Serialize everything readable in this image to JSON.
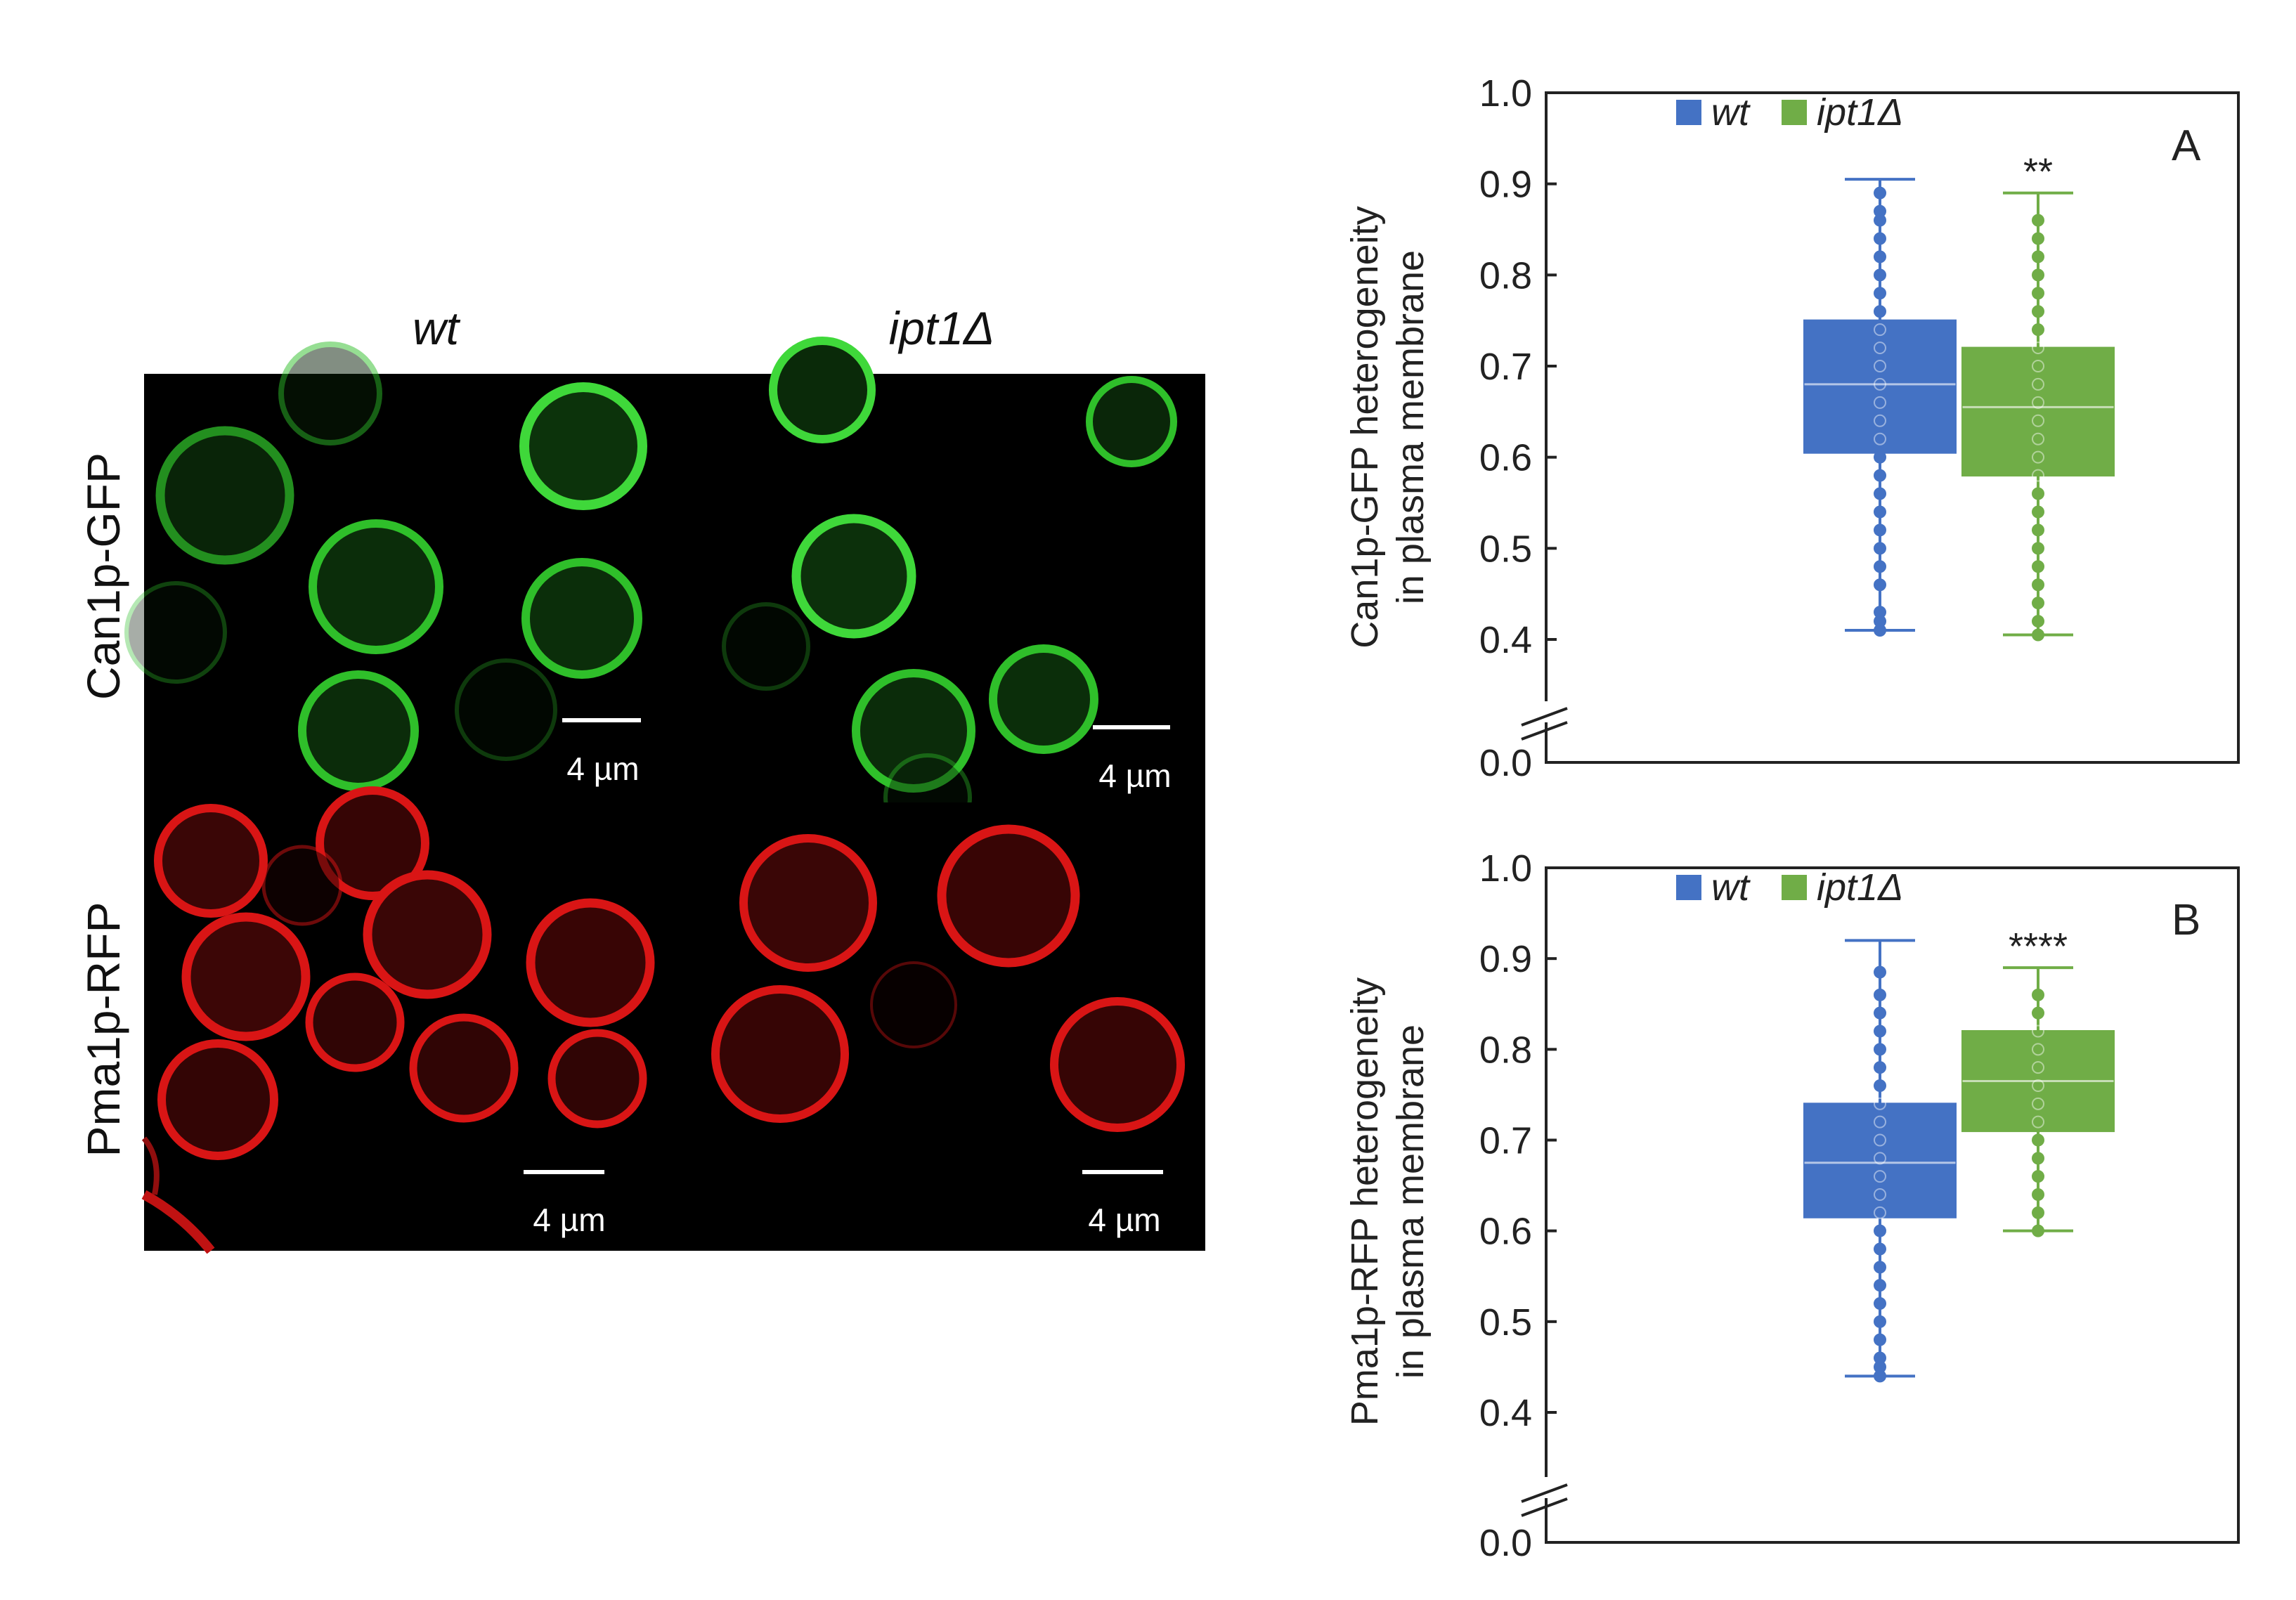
{
  "micrographs": {
    "columns": [
      "wt",
      "ipt1Δ"
    ],
    "rows": [
      "Can1p-GFP",
      "Pma1p-RFP"
    ],
    "scale_label": "4 µm",
    "colors": {
      "green_channel": "#35c830",
      "red_channel": "#e01818"
    }
  },
  "chart_data": [
    {
      "type": "box",
      "panel_label": "A",
      "ylabel_lines": [
        "Can1p-GFP heterogeneity",
        "in plasma membrane"
      ],
      "ylim": [
        0.0,
        1.0
      ],
      "axis_break": true,
      "y_ticks": [
        "0.0",
        "0.4",
        "0.5",
        "0.6",
        "0.7",
        "0.8",
        "0.9",
        "1.0"
      ],
      "legend": [
        "wt",
        "ipt1Δ"
      ],
      "legend_placement": "top-center",
      "series": [
        {
          "name": "wt",
          "color": "#4472c4",
          "min": 0.41,
          "q1": 0.605,
          "median": 0.68,
          "q3": 0.75,
          "max": 0.905,
          "points": [
            0.41,
            0.42,
            0.43,
            0.46,
            0.48,
            0.5,
            0.52,
            0.54,
            0.56,
            0.58,
            0.6,
            0.62,
            0.64,
            0.66,
            0.68,
            0.7,
            0.72,
            0.74,
            0.76,
            0.78,
            0.8,
            0.82,
            0.84,
            0.86,
            0.87,
            0.89
          ]
        },
        {
          "name": "ipt1Δ",
          "color": "#70ad47",
          "min": 0.405,
          "q1": 0.58,
          "median": 0.655,
          "q3": 0.72,
          "max": 0.89,
          "points": [
            0.405,
            0.42,
            0.44,
            0.46,
            0.48,
            0.5,
            0.52,
            0.54,
            0.56,
            0.58,
            0.6,
            0.62,
            0.64,
            0.66,
            0.68,
            0.7,
            0.72,
            0.74,
            0.76,
            0.78,
            0.8,
            0.82,
            0.84,
            0.86
          ]
        }
      ],
      "significance": "**"
    },
    {
      "type": "box",
      "panel_label": "B",
      "ylabel_lines": [
        "Pma1p-RFP heterogeneity",
        "in plasma membrane"
      ],
      "ylim": [
        0.0,
        1.0
      ],
      "axis_break": true,
      "y_ticks": [
        "0.0",
        "0.4",
        "0.5",
        "0.6",
        "0.7",
        "0.8",
        "0.9",
        "1.0"
      ],
      "legend": [
        "wt",
        "ipt1Δ"
      ],
      "legend_placement": "top-center",
      "series": [
        {
          "name": "wt",
          "color": "#4472c4",
          "min": 0.44,
          "q1": 0.615,
          "median": 0.675,
          "q3": 0.74,
          "max": 0.92,
          "points": [
            0.44,
            0.45,
            0.46,
            0.48,
            0.5,
            0.52,
            0.54,
            0.56,
            0.58,
            0.6,
            0.62,
            0.64,
            0.66,
            0.68,
            0.7,
            0.72,
            0.74,
            0.76,
            0.78,
            0.8,
            0.82,
            0.84,
            0.86,
            0.885
          ]
        },
        {
          "name": "ipt1Δ",
          "color": "#70ad47",
          "min": 0.6,
          "q1": 0.71,
          "median": 0.765,
          "q3": 0.82,
          "max": 0.89,
          "points": [
            0.6,
            0.62,
            0.64,
            0.66,
            0.68,
            0.7,
            0.72,
            0.74,
            0.76,
            0.78,
            0.8,
            0.82,
            0.84,
            0.86
          ]
        }
      ],
      "significance": "****"
    }
  ]
}
